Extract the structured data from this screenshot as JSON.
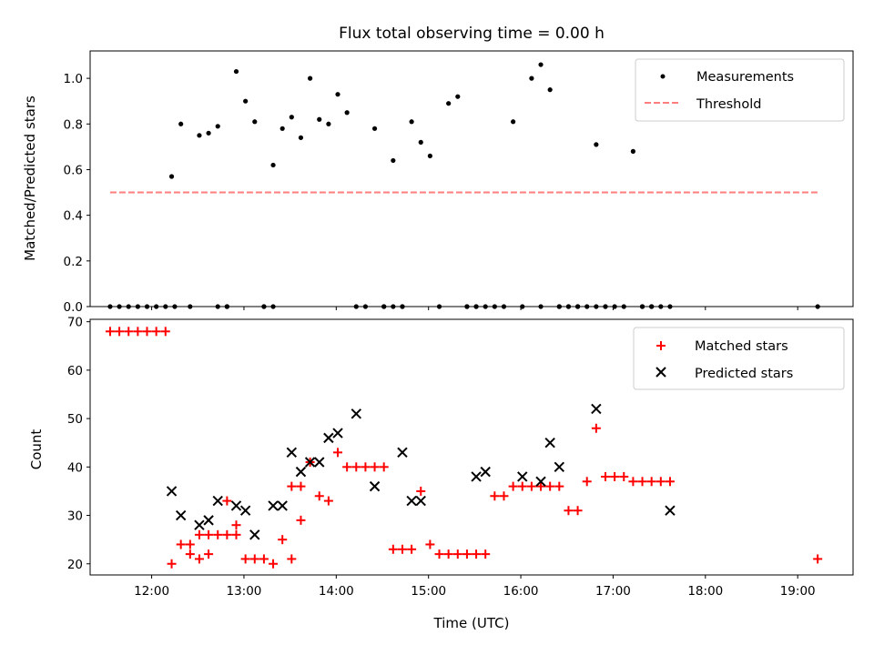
{
  "chart_data": [
    {
      "type": "scatter",
      "title": "Flux total observing time = 0.00 h",
      "ylabel": "Matched/Predicted stars",
      "xlabel": "",
      "xlim": [
        "11:20",
        "19:36"
      ],
      "ylim": [
        0,
        1.12
      ],
      "yticks": [
        "0.0",
        "0.2",
        "0.4",
        "0.6",
        "0.8",
        "1.0"
      ],
      "legend_position": "top-right",
      "colors": {
        "measurements": "#000000",
        "threshold": "#ff7f7f"
      },
      "series": [
        {
          "name": "Measurements",
          "x": [
            "11:33",
            "11:39",
            "11:45",
            "11:51",
            "11:57",
            "12:03",
            "12:09",
            "12:15",
            "12:13",
            "12:19",
            "12:25",
            "12:31",
            "12:37",
            "12:43",
            "12:49",
            "12:55",
            "13:01",
            "13:07",
            "13:13",
            "13:19",
            "13:25",
            "13:31",
            "13:37",
            "13:43",
            "13:49",
            "13:55",
            "14:01",
            "14:07",
            "14:13",
            "14:19",
            "14:25",
            "14:31",
            "14:37",
            "14:43",
            "14:49",
            "14:55",
            "15:01",
            "15:07",
            "15:13",
            "15:19",
            "15:25",
            "15:31",
            "15:37",
            "15:43",
            "15:49",
            "15:55",
            "16:01",
            "16:07",
            "16:13",
            "16:19",
            "16:25",
            "16:31",
            "16:37",
            "16:43",
            "16:49",
            "16:55",
            "17:01",
            "17:07",
            "17:13",
            "17:19",
            "17:25",
            "17:31",
            "17:37",
            "12:43",
            "12:49",
            "13:13",
            "13:19",
            "14:31",
            "14:37",
            "14:43",
            "15:25",
            "15:31",
            "16:13",
            "16:25",
            "16:31",
            "16:37",
            "16:49",
            "16:55",
            "17:19",
            "17:25",
            "19:13"
          ],
          "y": [
            0,
            0,
            0,
            0,
            0,
            0,
            0,
            0,
            0.57,
            0.8,
            0,
            0.75,
            0.76,
            0.79,
            0,
            1.03,
            0.9,
            0.81,
            0,
            0.62,
            0.78,
            0.83,
            0.74,
            1.0,
            0.82,
            0.8,
            0.93,
            0.85,
            0,
            0,
            0.78,
            0,
            0.64,
            0,
            0.81,
            0.72,
            0.66,
            0,
            0.89,
            0.92,
            0,
            0,
            0,
            0,
            0,
            0.81,
            0,
            1.0,
            1.06,
            0.95,
            0,
            0,
            0,
            0,
            0.71,
            0,
            0,
            0,
            0.68,
            0,
            0,
            0,
            0,
            0,
            0,
            0,
            0,
            0,
            0,
            0,
            0,
            0,
            0,
            0,
            0,
            0,
            0,
            0,
            0,
            0,
            0
          ]
        },
        {
          "name": "Threshold",
          "x": [
            "11:33",
            "19:13"
          ],
          "y": [
            0.5,
            0.5
          ]
        }
      ]
    },
    {
      "type": "scatter",
      "title": "",
      "xlabel": "Time (UTC)",
      "ylabel": "Count",
      "xlim": [
        "11:20",
        "19:36"
      ],
      "ylim": [
        17.7,
        70.5
      ],
      "xticks": [
        "12:00",
        "13:00",
        "14:00",
        "15:00",
        "16:00",
        "17:00",
        "18:00",
        "19:00"
      ],
      "yticks": [
        "20",
        "30",
        "40",
        "50",
        "60",
        "70"
      ],
      "legend_position": "top-right",
      "colors": {
        "matched": "#ff0000",
        "predicted": "#000000"
      },
      "series": [
        {
          "name": "Matched stars",
          "x": [
            "11:33",
            "11:39",
            "11:45",
            "11:51",
            "11:57",
            "12:03",
            "12:09",
            "12:13",
            "12:19",
            "12:25",
            "12:31",
            "12:37",
            "12:43",
            "12:49",
            "12:55",
            "12:49",
            "12:55",
            "13:01",
            "13:07",
            "13:13",
            "13:19",
            "13:25",
            "13:31",
            "13:37",
            "13:43",
            "13:49",
            "13:55",
            "14:01",
            "14:07",
            "14:13",
            "14:19",
            "14:25",
            "14:31",
            "14:37",
            "14:43",
            "14:49",
            "14:55",
            "15:01",
            "15:07",
            "15:13",
            "15:19",
            "15:25",
            "15:31",
            "15:37",
            "15:43",
            "15:49",
            "15:55",
            "16:01",
            "16:07",
            "16:13",
            "16:19",
            "16:25",
            "16:31",
            "16:37",
            "16:43",
            "16:49",
            "16:55",
            "17:01",
            "17:07",
            "17:13",
            "17:19",
            "17:25",
            "17:31",
            "17:37",
            "19:13",
            "13:31",
            "13:37",
            "12:25",
            "12:31",
            "12:37"
          ],
          "y": [
            68,
            68,
            68,
            68,
            68,
            68,
            68,
            20,
            24,
            24,
            21,
            22,
            26,
            26,
            26,
            33,
            28,
            21,
            21,
            21,
            20,
            25,
            36,
            29,
            41,
            34,
            33,
            43,
            40,
            40,
            40,
            40,
            40,
            23,
            23,
            23,
            35,
            24,
            22,
            22,
            22,
            22,
            22,
            22,
            34,
            34,
            36,
            36,
            36,
            36,
            36,
            36,
            31,
            31,
            37,
            48,
            38,
            38,
            38,
            37,
            37,
            37,
            37,
            37,
            21,
            21,
            36,
            22,
            26,
            26
          ]
        },
        {
          "name": "Predicted stars",
          "x": [
            "12:13",
            "12:19",
            "12:31",
            "12:37",
            "12:43",
            "12:55",
            "13:01",
            "13:07",
            "13:19",
            "13:25",
            "13:31",
            "13:37",
            "13:43",
            "13:49",
            "13:55",
            "14:01",
            "14:13",
            "14:25",
            "14:43",
            "14:49",
            "14:55",
            "15:31",
            "15:37",
            "16:01",
            "16:13",
            "16:19",
            "16:25",
            "16:49",
            "17:37"
          ],
          "y": [
            35,
            30,
            28,
            29,
            33,
            32,
            31,
            26,
            32,
            32,
            43,
            39,
            41,
            41,
            46,
            47,
            51,
            36,
            43,
            33,
            33,
            38,
            39,
            38,
            37,
            45,
            40,
            52,
            31
          ]
        }
      ]
    }
  ],
  "legend": {
    "top": [
      {
        "label": "Measurements"
      },
      {
        "label": "Threshold"
      }
    ],
    "bottom": [
      {
        "label": "Matched stars"
      },
      {
        "label": "Predicted stars"
      }
    ]
  }
}
